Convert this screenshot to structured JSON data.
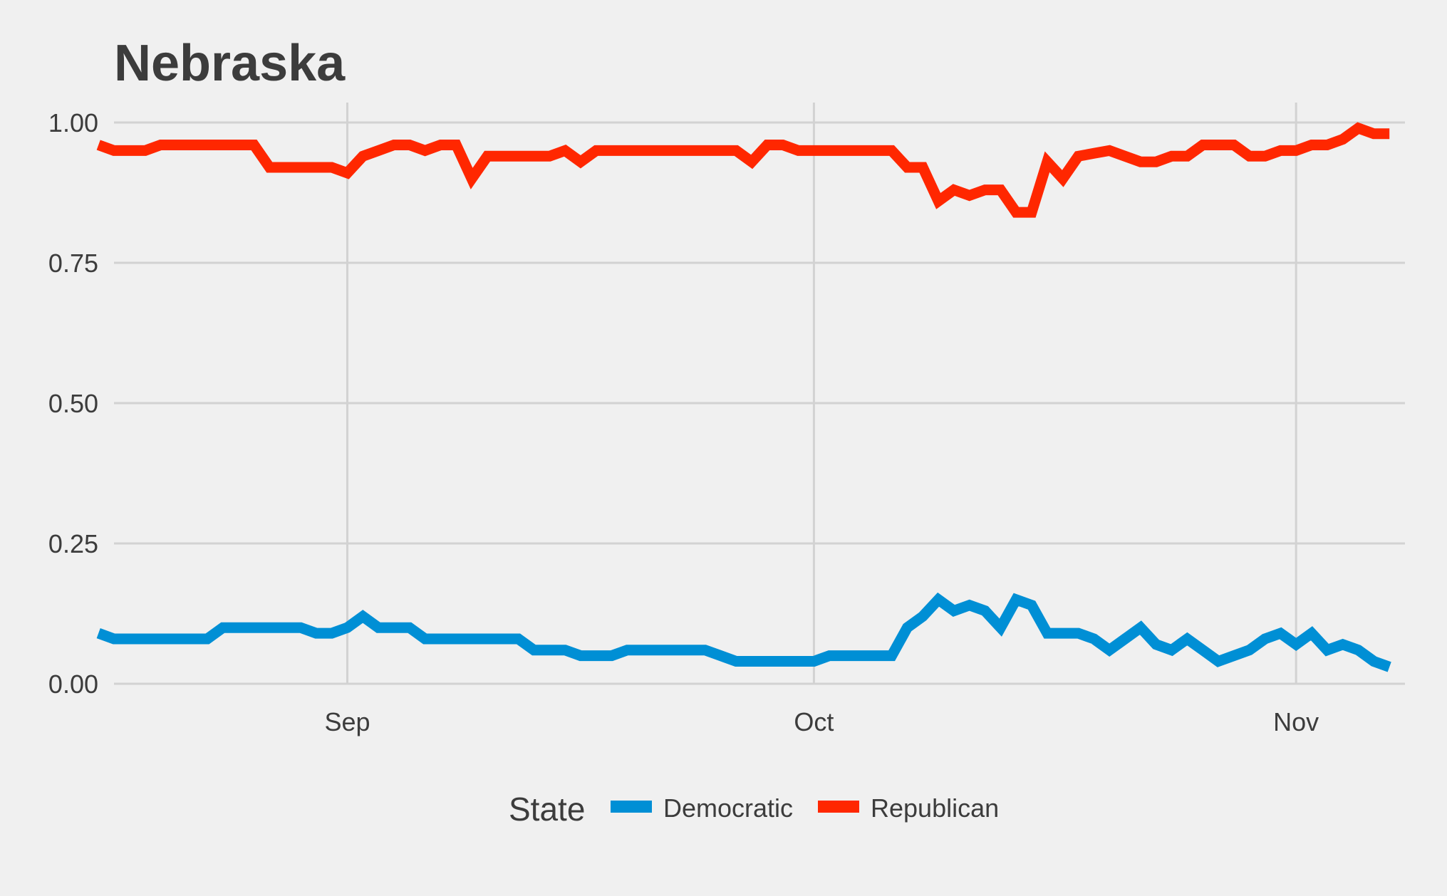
{
  "chart_data": {
    "type": "line",
    "title": "Nebraska",
    "xlabel": "",
    "ylabel": "",
    "x_axis_type": "date",
    "x_range": [
      "2016-08-17",
      "2016-11-08"
    ],
    "ylim": [
      0,
      1
    ],
    "y_ticks": [
      0,
      0.25,
      0.5,
      0.75,
      1.0
    ],
    "y_tick_labels": [
      "0.00",
      "0.25",
      "0.50",
      "0.75",
      "1.00"
    ],
    "x_ticks": [
      "2016-09-01",
      "2016-10-01",
      "2016-11-01"
    ],
    "x_tick_labels": [
      "Sep",
      "Oct",
      "Nov"
    ],
    "grid": true,
    "legend": {
      "title": "State",
      "placement": "bottom"
    },
    "series": [
      {
        "name": "Democratic",
        "color": "#008fd5",
        "points": [
          [
            "2016-08-16",
            0.09
          ],
          [
            "2016-08-17",
            0.08
          ],
          [
            "2016-08-18",
            0.08
          ],
          [
            "2016-08-19",
            0.08
          ],
          [
            "2016-08-20",
            0.08
          ],
          [
            "2016-08-21",
            0.08
          ],
          [
            "2016-08-22",
            0.08
          ],
          [
            "2016-08-23",
            0.08
          ],
          [
            "2016-08-24",
            0.1
          ],
          [
            "2016-08-25",
            0.1
          ],
          [
            "2016-08-26",
            0.1
          ],
          [
            "2016-08-27",
            0.1
          ],
          [
            "2016-08-28",
            0.1
          ],
          [
            "2016-08-29",
            0.1
          ],
          [
            "2016-08-30",
            0.09
          ],
          [
            "2016-08-31",
            0.09
          ],
          [
            "2016-09-01",
            0.1
          ],
          [
            "2016-09-02",
            0.12
          ],
          [
            "2016-09-03",
            0.1
          ],
          [
            "2016-09-04",
            0.1
          ],
          [
            "2016-09-05",
            0.1
          ],
          [
            "2016-09-06",
            0.08
          ],
          [
            "2016-09-07",
            0.08
          ],
          [
            "2016-09-08",
            0.08
          ],
          [
            "2016-09-09",
            0.08
          ],
          [
            "2016-09-10",
            0.08
          ],
          [
            "2016-09-11",
            0.08
          ],
          [
            "2016-09-12",
            0.08
          ],
          [
            "2016-09-13",
            0.06
          ],
          [
            "2016-09-14",
            0.06
          ],
          [
            "2016-09-15",
            0.06
          ],
          [
            "2016-09-16",
            0.05
          ],
          [
            "2016-09-17",
            0.05
          ],
          [
            "2016-09-18",
            0.05
          ],
          [
            "2016-09-19",
            0.06
          ],
          [
            "2016-09-20",
            0.06
          ],
          [
            "2016-09-21",
            0.06
          ],
          [
            "2016-09-22",
            0.06
          ],
          [
            "2016-09-23",
            0.06
          ],
          [
            "2016-09-24",
            0.06
          ],
          [
            "2016-09-25",
            0.05
          ],
          [
            "2016-09-26",
            0.04
          ],
          [
            "2016-09-27",
            0.04
          ],
          [
            "2016-09-28",
            0.04
          ],
          [
            "2016-09-29",
            0.04
          ],
          [
            "2016-09-30",
            0.04
          ],
          [
            "2016-10-01",
            0.04
          ],
          [
            "2016-10-02",
            0.05
          ],
          [
            "2016-10-03",
            0.05
          ],
          [
            "2016-10-04",
            0.05
          ],
          [
            "2016-10-05",
            0.05
          ],
          [
            "2016-10-06",
            0.05
          ],
          [
            "2016-10-07",
            0.1
          ],
          [
            "2016-10-08",
            0.12
          ],
          [
            "2016-10-09",
            0.15
          ],
          [
            "2016-10-10",
            0.13
          ],
          [
            "2016-10-11",
            0.14
          ],
          [
            "2016-10-12",
            0.13
          ],
          [
            "2016-10-13",
            0.1
          ],
          [
            "2016-10-14",
            0.15
          ],
          [
            "2016-10-15",
            0.14
          ],
          [
            "2016-10-16",
            0.09
          ],
          [
            "2016-10-17",
            0.09
          ],
          [
            "2016-10-18",
            0.09
          ],
          [
            "2016-10-19",
            0.08
          ],
          [
            "2016-10-20",
            0.06
          ],
          [
            "2016-10-21",
            0.08
          ],
          [
            "2016-10-22",
            0.1
          ],
          [
            "2016-10-23",
            0.07
          ],
          [
            "2016-10-24",
            0.06
          ],
          [
            "2016-10-25",
            0.08
          ],
          [
            "2016-10-26",
            0.06
          ],
          [
            "2016-10-27",
            0.04
          ],
          [
            "2016-10-28",
            0.05
          ],
          [
            "2016-10-29",
            0.06
          ],
          [
            "2016-10-30",
            0.08
          ],
          [
            "2016-10-31",
            0.09
          ],
          [
            "2016-11-01",
            0.07
          ],
          [
            "2016-11-02",
            0.09
          ],
          [
            "2016-11-03",
            0.06
          ],
          [
            "2016-11-04",
            0.07
          ],
          [
            "2016-11-05",
            0.06
          ],
          [
            "2016-11-06",
            0.04
          ],
          [
            "2016-11-07",
            0.03
          ]
        ]
      },
      {
        "name": "Republican",
        "color": "#ff2700",
        "points": [
          [
            "2016-08-16",
            0.96
          ],
          [
            "2016-08-17",
            0.95
          ],
          [
            "2016-08-18",
            0.95
          ],
          [
            "2016-08-19",
            0.95
          ],
          [
            "2016-08-20",
            0.96
          ],
          [
            "2016-08-21",
            0.96
          ],
          [
            "2016-08-22",
            0.96
          ],
          [
            "2016-08-23",
            0.96
          ],
          [
            "2016-08-24",
            0.96
          ],
          [
            "2016-08-25",
            0.96
          ],
          [
            "2016-08-26",
            0.96
          ],
          [
            "2016-08-27",
            0.92
          ],
          [
            "2016-08-28",
            0.92
          ],
          [
            "2016-08-29",
            0.92
          ],
          [
            "2016-08-30",
            0.92
          ],
          [
            "2016-08-31",
            0.92
          ],
          [
            "2016-09-01",
            0.91
          ],
          [
            "2016-09-02",
            0.94
          ],
          [
            "2016-09-03",
            0.95
          ],
          [
            "2016-09-04",
            0.96
          ],
          [
            "2016-09-05",
            0.96
          ],
          [
            "2016-09-06",
            0.95
          ],
          [
            "2016-09-07",
            0.96
          ],
          [
            "2016-09-08",
            0.96
          ],
          [
            "2016-09-09",
            0.9
          ],
          [
            "2016-09-10",
            0.94
          ],
          [
            "2016-09-11",
            0.94
          ],
          [
            "2016-09-12",
            0.94
          ],
          [
            "2016-09-13",
            0.94
          ],
          [
            "2016-09-14",
            0.94
          ],
          [
            "2016-09-15",
            0.95
          ],
          [
            "2016-09-16",
            0.93
          ],
          [
            "2016-09-17",
            0.95
          ],
          [
            "2016-09-18",
            0.95
          ],
          [
            "2016-09-19",
            0.95
          ],
          [
            "2016-09-20",
            0.95
          ],
          [
            "2016-09-21",
            0.95
          ],
          [
            "2016-09-22",
            0.95
          ],
          [
            "2016-09-23",
            0.95
          ],
          [
            "2016-09-24",
            0.95
          ],
          [
            "2016-09-25",
            0.95
          ],
          [
            "2016-09-26",
            0.95
          ],
          [
            "2016-09-27",
            0.93
          ],
          [
            "2016-09-28",
            0.96
          ],
          [
            "2016-09-29",
            0.96
          ],
          [
            "2016-09-30",
            0.95
          ],
          [
            "2016-10-01",
            0.95
          ],
          [
            "2016-10-02",
            0.95
          ],
          [
            "2016-10-03",
            0.95
          ],
          [
            "2016-10-04",
            0.95
          ],
          [
            "2016-10-05",
            0.95
          ],
          [
            "2016-10-06",
            0.95
          ],
          [
            "2016-10-07",
            0.92
          ],
          [
            "2016-10-08",
            0.92
          ],
          [
            "2016-10-09",
            0.86
          ],
          [
            "2016-10-10",
            0.88
          ],
          [
            "2016-10-11",
            0.87
          ],
          [
            "2016-10-12",
            0.88
          ],
          [
            "2016-10-13",
            0.88
          ],
          [
            "2016-10-14",
            0.84
          ],
          [
            "2016-10-15",
            0.84
          ],
          [
            "2016-10-16",
            0.93
          ],
          [
            "2016-10-17",
            0.9
          ],
          [
            "2016-10-18",
            0.94
          ],
          [
            "2016-10-19",
            0.945
          ],
          [
            "2016-10-20",
            0.95
          ],
          [
            "2016-10-21",
            0.94
          ],
          [
            "2016-10-22",
            0.93
          ],
          [
            "2016-10-23",
            0.93
          ],
          [
            "2016-10-24",
            0.94
          ],
          [
            "2016-10-25",
            0.94
          ],
          [
            "2016-10-26",
            0.96
          ],
          [
            "2016-10-27",
            0.96
          ],
          [
            "2016-10-28",
            0.96
          ],
          [
            "2016-10-29",
            0.94
          ],
          [
            "2016-10-30",
            0.94
          ],
          [
            "2016-10-31",
            0.95
          ],
          [
            "2016-11-01",
            0.95
          ],
          [
            "2016-11-02",
            0.96
          ],
          [
            "2016-11-03",
            0.96
          ],
          [
            "2016-11-04",
            0.97
          ],
          [
            "2016-11-05",
            0.99
          ],
          [
            "2016-11-06",
            0.98
          ],
          [
            "2016-11-07",
            0.98
          ]
        ]
      }
    ]
  },
  "style": {
    "background": "#f0f0f0",
    "grid_color": "#d2d2d2",
    "text_color": "#3c3c3c"
  }
}
